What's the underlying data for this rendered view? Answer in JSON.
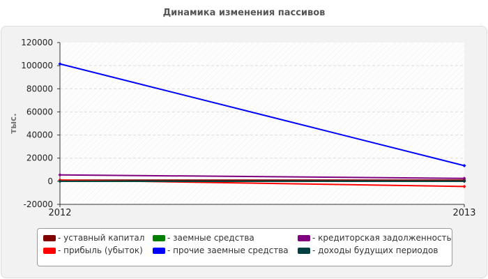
{
  "chart_data": {
    "type": "line",
    "title": "Динамика изменения пассивов",
    "xlabel": "",
    "ylabel": "тыс.",
    "x": [
      "2012",
      "2013"
    ],
    "ylim": [
      -20000,
      120000
    ],
    "yticks": [
      -20000,
      0,
      20000,
      40000,
      60000,
      80000,
      100000,
      120000
    ],
    "grid": true,
    "legend_position": "bottom",
    "series": [
      {
        "name": "- уставный капитал",
        "color": "#800000",
        "values": [
          1000,
          1000
        ]
      },
      {
        "name": "- прибыль (убыток)",
        "color": "#ff0000",
        "values": [
          1000,
          -4500
        ]
      },
      {
        "name": "- заемные средства",
        "color": "#008000",
        "values": [
          0,
          0
        ]
      },
      {
        "name": "- прочие заемные средства",
        "color": "#0000ff",
        "values": [
          101500,
          13500
        ]
      },
      {
        "name": "- кредиторская задолженность",
        "color": "#800080",
        "values": [
          5500,
          2500
        ]
      },
      {
        "name": "- доходы будущих периодов",
        "color": "#004040",
        "values": [
          0,
          0
        ]
      }
    ]
  }
}
